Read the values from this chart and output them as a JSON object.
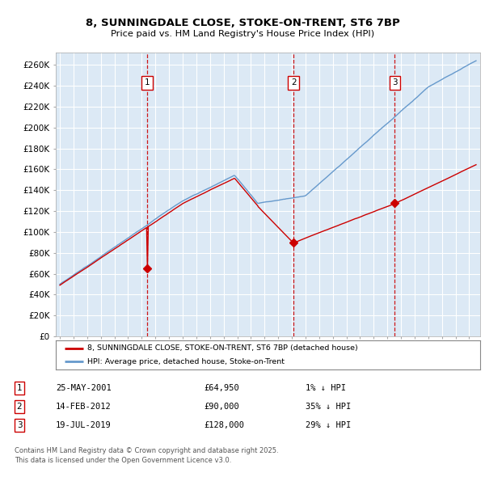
{
  "title_line1": "8, SUNNINGDALE CLOSE, STOKE-ON-TRENT, ST6 7BP",
  "title_line2": "Price paid vs. HM Land Registry's House Price Index (HPI)",
  "ylabel_ticks": [
    "£0",
    "£20K",
    "£40K",
    "£60K",
    "£80K",
    "£100K",
    "£120K",
    "£140K",
    "£160K",
    "£180K",
    "£200K",
    "£220K",
    "£240K",
    "£260K"
  ],
  "ytick_values": [
    0,
    20000,
    40000,
    60000,
    80000,
    100000,
    120000,
    140000,
    160000,
    180000,
    200000,
    220000,
    240000,
    260000
  ],
  "xlim": [
    1994.7,
    2025.8
  ],
  "ylim": [
    0,
    272000
  ],
  "bg_color": "#dce9f5",
  "red_line_color": "#cc0000",
  "blue_line_color": "#6699cc",
  "grid_color": "#ffffff",
  "sale_marker_color": "#cc0000",
  "dashed_line_color": "#cc0000",
  "transaction1": {
    "date_x": 2001.4,
    "price": 64950,
    "label": "1"
  },
  "transaction2": {
    "date_x": 2012.12,
    "price": 90000,
    "label": "2"
  },
  "transaction3": {
    "date_x": 2019.55,
    "price": 128000,
    "label": "3"
  },
  "legend_red_label": "8, SUNNINGDALE CLOSE, STOKE-ON-TRENT, ST6 7BP (detached house)",
  "legend_blue_label": "HPI: Average price, detached house, Stoke-on-Trent",
  "table_rows": [
    {
      "num": "1",
      "date": "25-MAY-2001",
      "price": "£64,950",
      "pct": "1% ↓ HPI"
    },
    {
      "num": "2",
      "date": "14-FEB-2012",
      "price": "£90,000",
      "pct": "35% ↓ HPI"
    },
    {
      "num": "3",
      "date": "19-JUL-2019",
      "price": "£128,000",
      "pct": "29% ↓ HPI"
    }
  ],
  "footer_text": "Contains HM Land Registry data © Crown copyright and database right 2025.\nThis data is licensed under the Open Government Licence v3.0."
}
